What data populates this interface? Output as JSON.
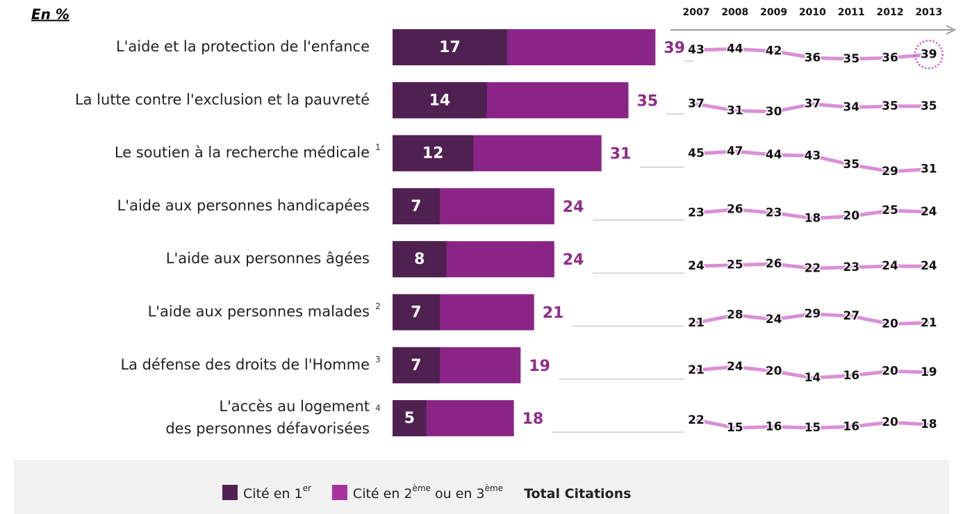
{
  "chart_data": {
    "type": "bar",
    "unit_label": "En %",
    "categories": [
      [
        "L'aide et la protection de l'enfance"
      ],
      [
        "La lutte contre l'exclusion et la pauvreté"
      ],
      [
        "Le soutien à la recherche médicale"
      ],
      [
        "L'aide aux personnes handicapées"
      ],
      [
        "L'aide aux personnes âgées"
      ],
      [
        "L'aide aux personnes malades"
      ],
      [
        "La défense des droits de l'Homme"
      ],
      [
        "L'accès au logement",
        "des personnes défavorisées"
      ]
    ],
    "footnotes": [
      null,
      null,
      "1",
      null,
      null,
      "2",
      "3",
      "4"
    ],
    "first": {
      "color": "#4f2150",
      "values": [
        17,
        14,
        12,
        7,
        8,
        7,
        7,
        5
      ]
    },
    "total": {
      "color": "#8a2587",
      "label_color": "#8e2c8c",
      "values": [
        39,
        35,
        31,
        24,
        24,
        21,
        19,
        18
      ]
    },
    "legend": [
      {
        "color": "#4f2150",
        "parts": [
          "Cité en 1",
          "er"
        ]
      },
      {
        "color": "#a8339f",
        "parts": [
          "Cité en 2",
          "ème",
          " ou en 3",
          "ème"
        ]
      },
      {
        "parts": [
          "Total Citations"
        ]
      }
    ],
    "trend": {
      "x": [
        "2007",
        "2008",
        "2009",
        "2010",
        "2011",
        "2012",
        "2013"
      ],
      "color": "#d98fd6",
      "highlight": [
        0,
        6
      ],
      "series": [
        {
          "values": [
            43,
            44,
            42,
            36,
            35,
            36,
            39
          ]
        },
        {
          "values": [
            37,
            31,
            30,
            37,
            34,
            35,
            35
          ]
        },
        {
          "values": [
            45,
            47,
            44,
            43,
            35,
            29,
            31
          ]
        },
        {
          "values": [
            23,
            26,
            23,
            18,
            20,
            25,
            24
          ]
        },
        {
          "values": [
            24,
            25,
            26,
            22,
            23,
            24,
            24
          ]
        },
        {
          "values": [
            21,
            28,
            24,
            29,
            27,
            20,
            21
          ]
        },
        {
          "values": [
            21,
            24,
            20,
            14,
            16,
            20,
            19
          ]
        },
        {
          "values": [
            22,
            15,
            16,
            15,
            16,
            20,
            18
          ]
        }
      ]
    }
  }
}
